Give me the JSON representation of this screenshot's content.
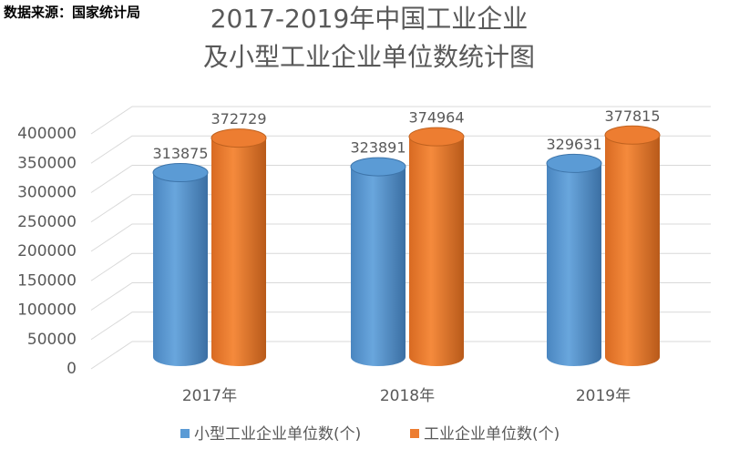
{
  "source": "数据来源：国家统计局",
  "chart_data": {
    "type": "bar",
    "title": [
      "2017-2019年中国工业企业",
      "及小型工业企业单位数统计图"
    ],
    "categories": [
      "2017年",
      "2018年",
      "2019年"
    ],
    "series": [
      {
        "name": "小型工业企业单位数(个)",
        "color": "#5b9bd5",
        "values": [
          313875,
          323891,
          329631
        ]
      },
      {
        "name": "工业企业单位数(个)",
        "color": "#ed7d31",
        "values": [
          372729,
          374964,
          377815
        ]
      }
    ],
    "ylim": [
      0,
      400000
    ],
    "yticks": [
      0,
      50000,
      100000,
      150000,
      200000,
      250000,
      300000,
      350000,
      400000
    ],
    "grid": true,
    "legend": "bottom"
  }
}
